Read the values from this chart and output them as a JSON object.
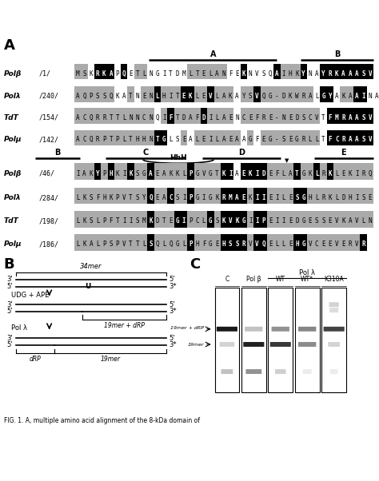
{
  "title_A": "A",
  "title_B": "B",
  "title_C": "C",
  "fig_caption": "FIG. 1. A, multiple amino acid alignment of the 8-kDa domain of",
  "alignment_block1": {
    "rows": [
      {
        "name": "Polβ",
        "num": "/1/",
        "seq": "MSKRKAPQETLNGITDMLTELANFEKNVSQAIHKYNAYRKAAASV"
      },
      {
        "name": "Polλ",
        "num": "/240/",
        "seq": "AQPSSQKATNENLHITEKLEVLAKAYSVQG-DKWRALGYAKAAINA"
      },
      {
        "name": "TdT",
        "num": "/154/",
        "seq": "ACQRRTTLNNCNQIFTDAFDILAENCEFRE-NEDSCVTFMRAASV"
      },
      {
        "name": "Polμ",
        "num": "/142/",
        "seq": "ACQRPTPLTHHNTGLSEALEILAEAAGFEG-SEGRLLTFCRAASV"
      }
    ]
  },
  "alignment_block2": {
    "rows": [
      {
        "name": "Polβ",
        "num": "/46/",
        "seq": "IAKYPHKIKSGAEAKKLPGVGTKIAEKIDEFLATGKLRKLEKIRQ"
      },
      {
        "name": "Polλ",
        "num": "/284/",
        "seq": "LKSFHKPVTSYQEACSIPGIGKRMAEKIIEILESGHLRKLDHISE"
      },
      {
        "name": "TdT",
        "num": "/198/",
        "seq": "LKSLPFTIISMKDTEGIPCLGSKVKGIIPEIIEDGESSEVKAVLN"
      },
      {
        "name": "Polμ",
        "num": "/186/",
        "seq": "LKALPSPVTTLSQLQGLPHFGEHSSRVVQELLEHGVCEEVERVR"
      }
    ]
  },
  "background_color": "#ffffff",
  "gel_lanes": [
    "C",
    "Pol β",
    "WT",
    "WT*",
    "K310A"
  ],
  "pol_lambda_label": "Pol λ"
}
